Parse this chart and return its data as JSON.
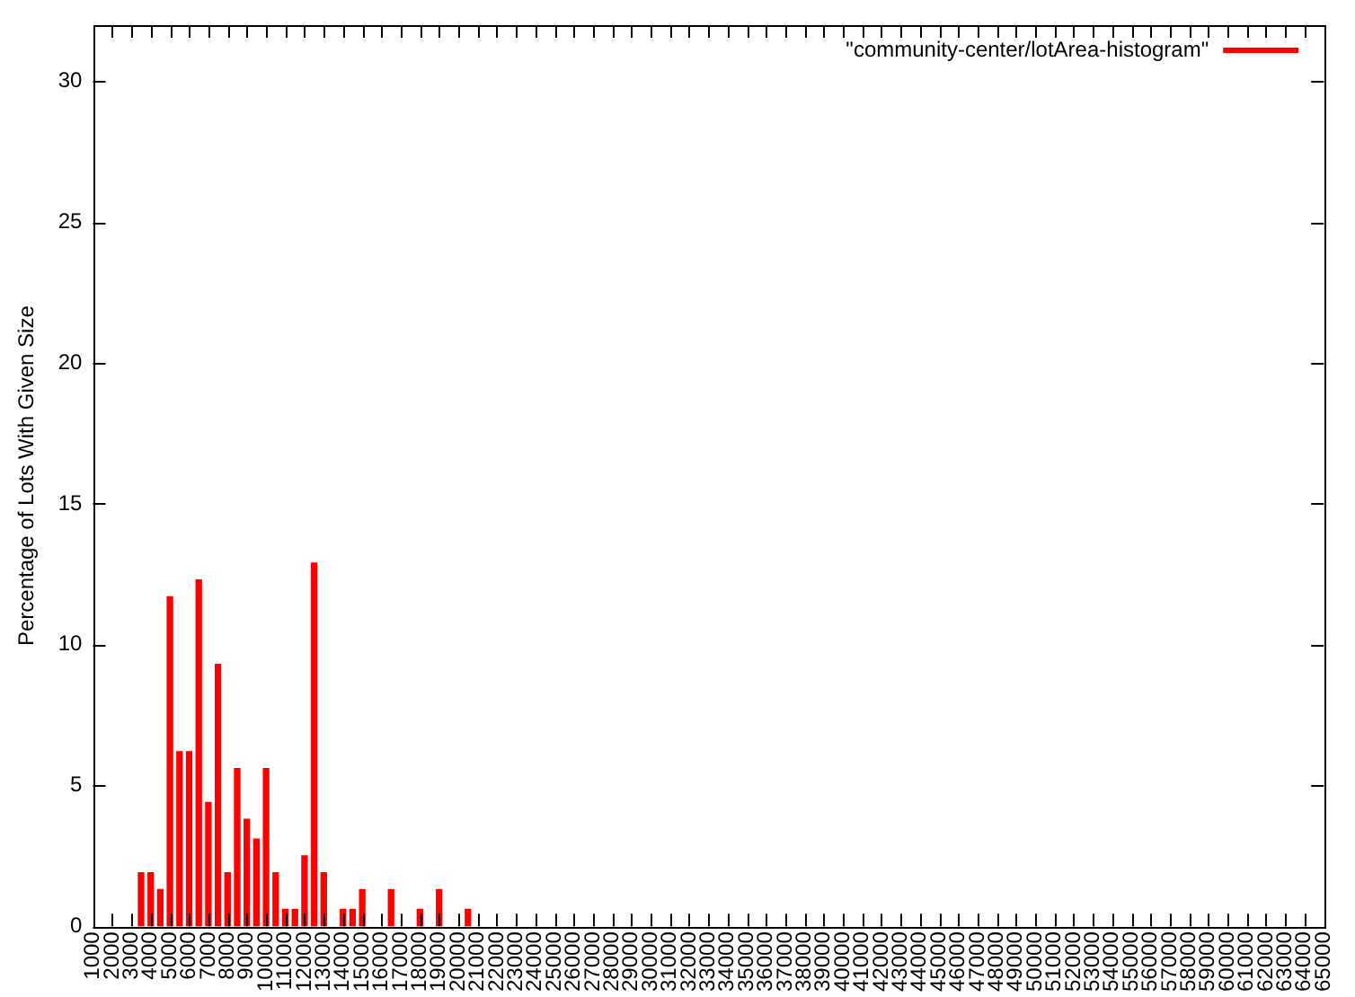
{
  "chart_data": {
    "type": "bar",
    "ylabel": "Percentage of Lots With Given Size",
    "xlim": [
      1000,
      65000
    ],
    "xticks": [
      1000,
      2000,
      3000,
      4000,
      5000,
      6000,
      7000,
      8000,
      9000,
      10000,
      11000,
      12000,
      13000,
      14000,
      15000,
      16000,
      17000,
      18000,
      19000,
      20000,
      21000,
      22000,
      23000,
      24000,
      25000,
      26000,
      27000,
      28000,
      29000,
      30000,
      31000,
      32000,
      33000,
      34000,
      35000,
      36000,
      37000,
      38000,
      39000,
      40000,
      41000,
      42000,
      43000,
      44000,
      45000,
      46000,
      47000,
      48000,
      49000,
      50000,
      51000,
      52000,
      53000,
      54000,
      55000,
      56000,
      57000,
      58000,
      59000,
      60000,
      61000,
      62000,
      63000,
      64000,
      65000
    ],
    "ylim": [
      0,
      32
    ],
    "yticks": [
      0,
      5,
      10,
      15,
      20,
      25,
      30
    ],
    "grid": false,
    "legend": "top right",
    "series": [
      {
        "name": "\"community-center/lotArea-histogram\"",
        "color": "#ff0000",
        "x": [
          3500,
          4000,
          4500,
          5000,
          5500,
          6000,
          6500,
          7000,
          7500,
          8000,
          8500,
          9000,
          9500,
          10000,
          10500,
          11000,
          11500,
          12000,
          12500,
          13000,
          14000,
          14500,
          15000,
          16500,
          18000,
          19000,
          20500
        ],
        "values": [
          1.9,
          1.9,
          1.3,
          11.7,
          6.2,
          6.2,
          12.3,
          4.4,
          9.3,
          1.9,
          5.6,
          3.8,
          3.1,
          5.6,
          1.9,
          0.6,
          0.6,
          2.5,
          12.9,
          1.9,
          0.6,
          0.6,
          1.3,
          1.3,
          0.6,
          1.3,
          0.6
        ]
      }
    ]
  }
}
